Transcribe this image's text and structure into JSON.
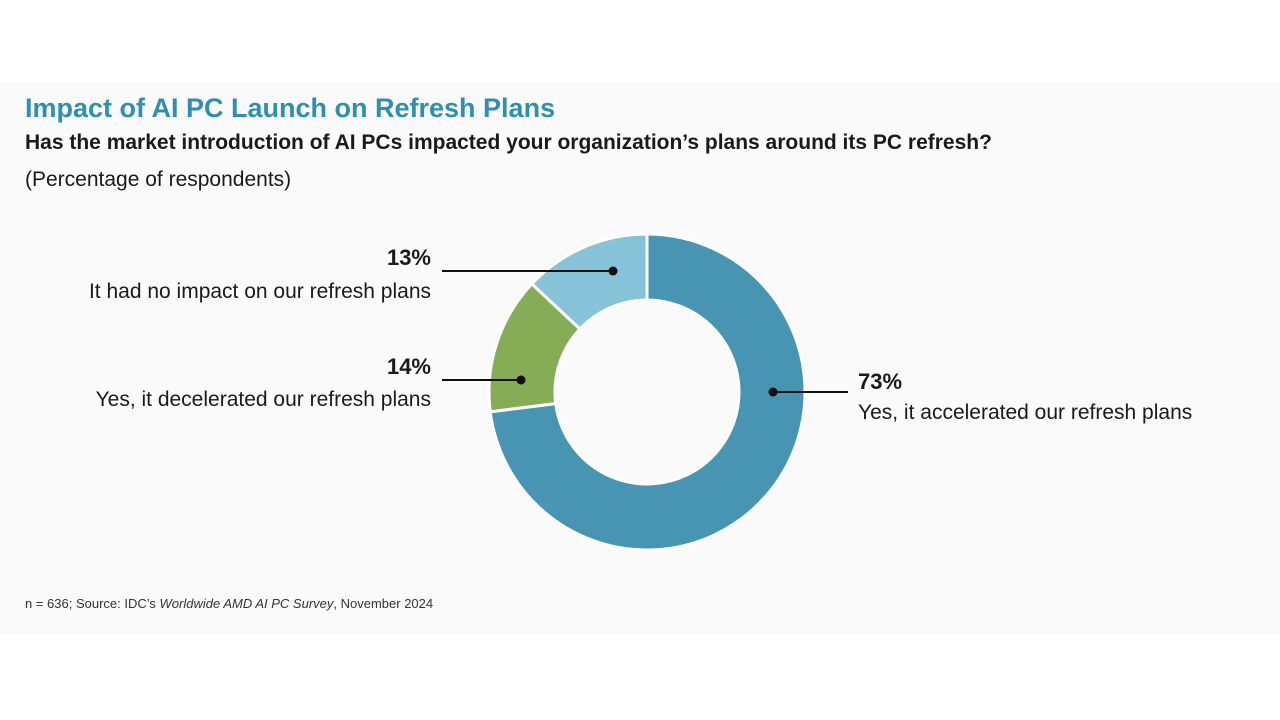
{
  "header": {
    "title": "Impact of AI PC Launch on Refresh Plans",
    "question": "Has the market introduction of AI PCs impacted your organization’s plans around its PC refresh?",
    "note": "(Percentage of respondents)"
  },
  "footer": {
    "source_prefix": "n = 636; Source: IDC’s ",
    "source_title": "Worldwide AMD AI PC Survey",
    "source_suffix": ", November 2024"
  },
  "chart_data": {
    "type": "pie",
    "variant": "donut",
    "title": "Impact of AI PC Launch on Refresh Plans",
    "unit": "%",
    "slices": [
      {
        "label": "Yes, it accelerated our refresh plans",
        "value": 73,
        "value_label": "73%",
        "color": "#4795b3"
      },
      {
        "label": "Yes, it decelerated our refresh plans",
        "value": 14,
        "value_label": "14%",
        "color": "#86ad55"
      },
      {
        "label": "It had no impact on our refresh plans",
        "value": 13,
        "value_label": "13%",
        "color": "#86c3d8"
      }
    ]
  }
}
